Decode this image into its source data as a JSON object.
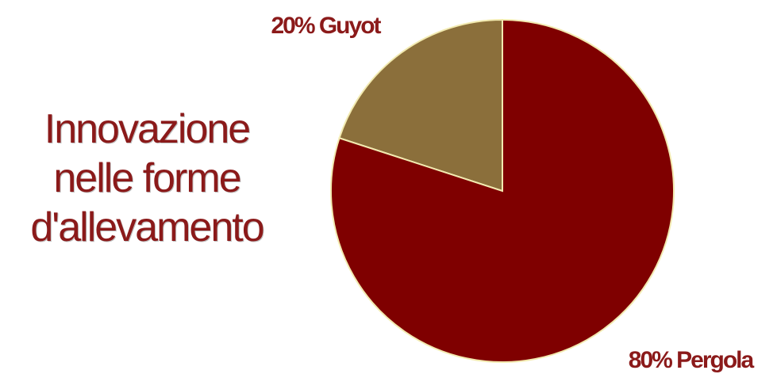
{
  "title_lines": [
    "Innovazione",
    "nelle forme",
    "d'allevamento"
  ],
  "colors": {
    "title": "#8b1a1a",
    "label": "#8b1a1a",
    "slice_border": "#f2eab0"
  },
  "chart_data": {
    "type": "pie",
    "title": "Innovazione nelle forme d'allevamento",
    "slices": [
      {
        "label": "Guyot",
        "value": 20,
        "display": "20% Guyot",
        "color": "#8b6f3b"
      },
      {
        "label": "Pergola",
        "value": 80,
        "display": "80% Pergola",
        "color": "#7f0000"
      }
    ]
  }
}
